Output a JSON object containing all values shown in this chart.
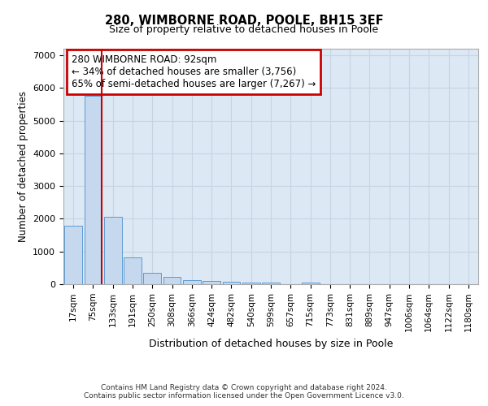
{
  "title_line1": "280, WIMBORNE ROAD, POOLE, BH15 3EF",
  "title_line2": "Size of property relative to detached houses in Poole",
  "xlabel": "Distribution of detached houses by size in Poole",
  "ylabel": "Number of detached properties",
  "bar_labels": [
    "17sqm",
    "75sqm",
    "133sqm",
    "191sqm",
    "250sqm",
    "308sqm",
    "366sqm",
    "424sqm",
    "482sqm",
    "540sqm",
    "599sqm",
    "657sqm",
    "715sqm",
    "773sqm",
    "831sqm",
    "889sqm",
    "947sqm",
    "1006sqm",
    "1064sqm",
    "1122sqm",
    "1180sqm"
  ],
  "bar_values": [
    1780,
    5750,
    2060,
    820,
    360,
    220,
    130,
    110,
    70,
    60,
    55,
    0,
    55,
    0,
    0,
    0,
    0,
    0,
    0,
    0,
    0
  ],
  "bar_color": "#c5d8ed",
  "bar_edge_color": "#5b9bd5",
  "highlight_color": "#cc0000",
  "annotation_text": "280 WIMBORNE ROAD: 92sqm\n← 34% of detached houses are smaller (3,756)\n65% of semi-detached houses are larger (7,267) →",
  "annotation_box_color": "#ffffff",
  "annotation_box_edge_color": "#cc0000",
  "property_line_x": 1.42,
  "ylim": [
    0,
    7200
  ],
  "yticks": [
    0,
    1000,
    2000,
    3000,
    4000,
    5000,
    6000,
    7000
  ],
  "grid_color": "#c8d4e4",
  "background_color": "#dde8f5",
  "footer_line1": "Contains HM Land Registry data © Crown copyright and database right 2024.",
  "footer_line2": "Contains public sector information licensed under the Open Government Licence v3.0."
}
